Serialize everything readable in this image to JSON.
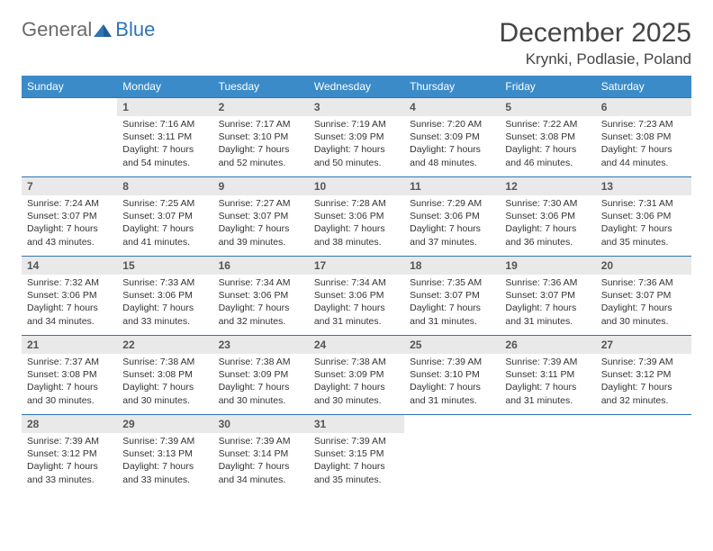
{
  "logo": {
    "general": "General",
    "blue": "Blue"
  },
  "header": {
    "month_title": "December 2025",
    "location": "Krynki, Podlasie, Poland"
  },
  "colors": {
    "header_bg": "#3b8bc9",
    "header_text": "#ffffff",
    "daynum_bg": "#e9e9e9",
    "row_border": "#2e74b5",
    "logo_gray": "#6b6b6b",
    "logo_blue": "#2e74b5"
  },
  "calendar": {
    "weekdays": [
      "Sunday",
      "Monday",
      "Tuesday",
      "Wednesday",
      "Thursday",
      "Friday",
      "Saturday"
    ],
    "weeks": [
      [
        null,
        {
          "n": "1",
          "sunrise": "7:16 AM",
          "sunset": "3:11 PM",
          "day_h": "7",
          "day_m": "54"
        },
        {
          "n": "2",
          "sunrise": "7:17 AM",
          "sunset": "3:10 PM",
          "day_h": "7",
          "day_m": "52"
        },
        {
          "n": "3",
          "sunrise": "7:19 AM",
          "sunset": "3:09 PM",
          "day_h": "7",
          "day_m": "50"
        },
        {
          "n": "4",
          "sunrise": "7:20 AM",
          "sunset": "3:09 PM",
          "day_h": "7",
          "day_m": "48"
        },
        {
          "n": "5",
          "sunrise": "7:22 AM",
          "sunset": "3:08 PM",
          "day_h": "7",
          "day_m": "46"
        },
        {
          "n": "6",
          "sunrise": "7:23 AM",
          "sunset": "3:08 PM",
          "day_h": "7",
          "day_m": "44"
        }
      ],
      [
        {
          "n": "7",
          "sunrise": "7:24 AM",
          "sunset": "3:07 PM",
          "day_h": "7",
          "day_m": "43"
        },
        {
          "n": "8",
          "sunrise": "7:25 AM",
          "sunset": "3:07 PM",
          "day_h": "7",
          "day_m": "41"
        },
        {
          "n": "9",
          "sunrise": "7:27 AM",
          "sunset": "3:07 PM",
          "day_h": "7",
          "day_m": "39"
        },
        {
          "n": "10",
          "sunrise": "7:28 AM",
          "sunset": "3:06 PM",
          "day_h": "7",
          "day_m": "38"
        },
        {
          "n": "11",
          "sunrise": "7:29 AM",
          "sunset": "3:06 PM",
          "day_h": "7",
          "day_m": "37"
        },
        {
          "n": "12",
          "sunrise": "7:30 AM",
          "sunset": "3:06 PM",
          "day_h": "7",
          "day_m": "36"
        },
        {
          "n": "13",
          "sunrise": "7:31 AM",
          "sunset": "3:06 PM",
          "day_h": "7",
          "day_m": "35"
        }
      ],
      [
        {
          "n": "14",
          "sunrise": "7:32 AM",
          "sunset": "3:06 PM",
          "day_h": "7",
          "day_m": "34"
        },
        {
          "n": "15",
          "sunrise": "7:33 AM",
          "sunset": "3:06 PM",
          "day_h": "7",
          "day_m": "33"
        },
        {
          "n": "16",
          "sunrise": "7:34 AM",
          "sunset": "3:06 PM",
          "day_h": "7",
          "day_m": "32"
        },
        {
          "n": "17",
          "sunrise": "7:34 AM",
          "sunset": "3:06 PM",
          "day_h": "7",
          "day_m": "31"
        },
        {
          "n": "18",
          "sunrise": "7:35 AM",
          "sunset": "3:07 PM",
          "day_h": "7",
          "day_m": "31"
        },
        {
          "n": "19",
          "sunrise": "7:36 AM",
          "sunset": "3:07 PM",
          "day_h": "7",
          "day_m": "31"
        },
        {
          "n": "20",
          "sunrise": "7:36 AM",
          "sunset": "3:07 PM",
          "day_h": "7",
          "day_m": "30"
        }
      ],
      [
        {
          "n": "21",
          "sunrise": "7:37 AM",
          "sunset": "3:08 PM",
          "day_h": "7",
          "day_m": "30"
        },
        {
          "n": "22",
          "sunrise": "7:38 AM",
          "sunset": "3:08 PM",
          "day_h": "7",
          "day_m": "30"
        },
        {
          "n": "23",
          "sunrise": "7:38 AM",
          "sunset": "3:09 PM",
          "day_h": "7",
          "day_m": "30"
        },
        {
          "n": "24",
          "sunrise": "7:38 AM",
          "sunset": "3:09 PM",
          "day_h": "7",
          "day_m": "30"
        },
        {
          "n": "25",
          "sunrise": "7:39 AM",
          "sunset": "3:10 PM",
          "day_h": "7",
          "day_m": "31"
        },
        {
          "n": "26",
          "sunrise": "7:39 AM",
          "sunset": "3:11 PM",
          "day_h": "7",
          "day_m": "31"
        },
        {
          "n": "27",
          "sunrise": "7:39 AM",
          "sunset": "3:12 PM",
          "day_h": "7",
          "day_m": "32"
        }
      ],
      [
        {
          "n": "28",
          "sunrise": "7:39 AM",
          "sunset": "3:12 PM",
          "day_h": "7",
          "day_m": "33"
        },
        {
          "n": "29",
          "sunrise": "7:39 AM",
          "sunset": "3:13 PM",
          "day_h": "7",
          "day_m": "33"
        },
        {
          "n": "30",
          "sunrise": "7:39 AM",
          "sunset": "3:14 PM",
          "day_h": "7",
          "day_m": "34"
        },
        {
          "n": "31",
          "sunrise": "7:39 AM",
          "sunset": "3:15 PM",
          "day_h": "7",
          "day_m": "35"
        },
        null,
        null,
        null
      ]
    ],
    "labels": {
      "sunrise": "Sunrise:",
      "sunset": "Sunset:",
      "daylight": "Daylight:",
      "hours_word": "hours",
      "and_word": "and",
      "minutes_word": "minutes."
    }
  }
}
